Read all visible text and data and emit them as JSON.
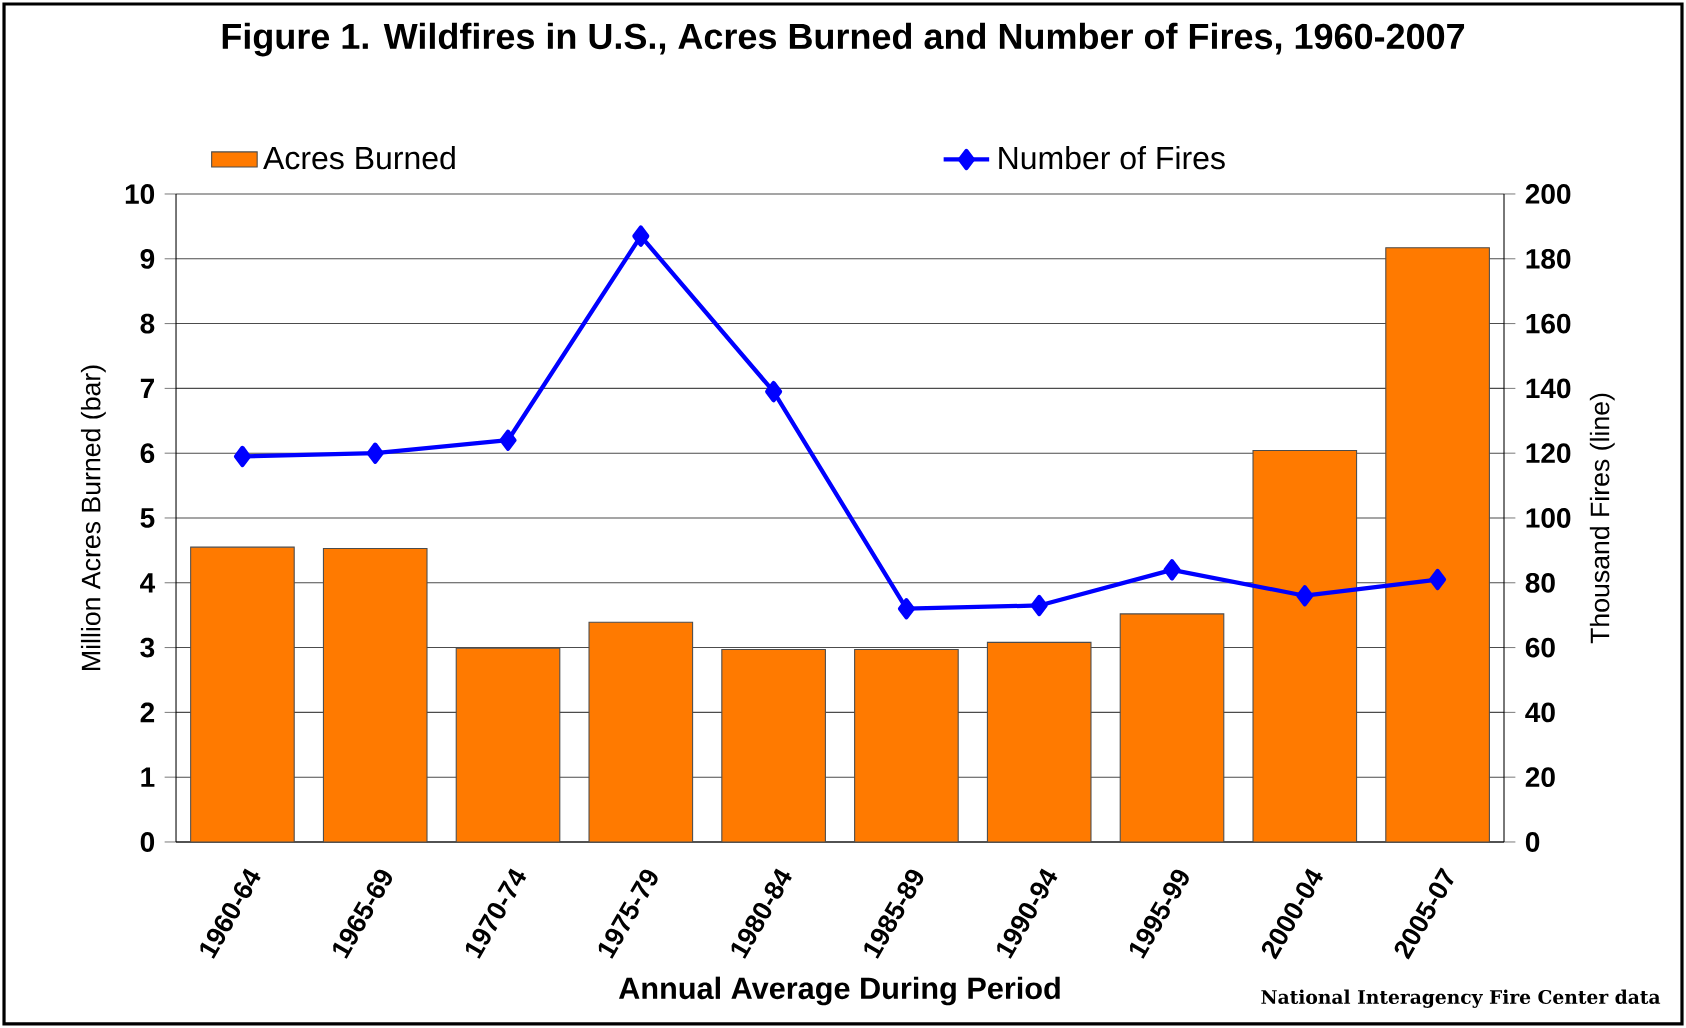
{
  "chart_data": {
    "type": "bar",
    "title": "Figure 1. Wildfires in U.S., Acres Burned and Number of Fires, 1960-2007",
    "categories": [
      "1960-64",
      "1965-69",
      "1970-74",
      "1975-79",
      "1980-84",
      "1985-89",
      "1990-94",
      "1995-99",
      "2000-04",
      "2005-07"
    ],
    "series": [
      {
        "name": "Acres Burned",
        "color": "#ff7a00",
        "values": [
          4.55,
          4.53,
          2.99,
          3.39,
          2.97,
          2.97,
          3.08,
          3.52,
          6.04,
          9.17
        ]
      },
      {
        "name": "Number of Fires",
        "type": "line",
        "axis": "y2",
        "marker": "diamond",
        "color": "#0000ff",
        "values": [
          119,
          120,
          124,
          187,
          139,
          72,
          73,
          84,
          76,
          81
        ]
      }
    ],
    "xlabel": "Annual Average During Period",
    "ylabel": "Million Acres Burned (bar)",
    "y2label": "Thousand Fires (line)",
    "ylim": [
      0,
      10
    ],
    "yticks": [
      0,
      1,
      2,
      3,
      4,
      5,
      6,
      7,
      8,
      9,
      10
    ],
    "y2lim": [
      0,
      200
    ],
    "y2ticks": [
      0,
      20,
      40,
      60,
      80,
      100,
      120,
      140,
      160,
      180,
      200
    ],
    "grid": "y",
    "legend": "top",
    "annotations": [
      "National Interagency Fire Center data"
    ]
  }
}
